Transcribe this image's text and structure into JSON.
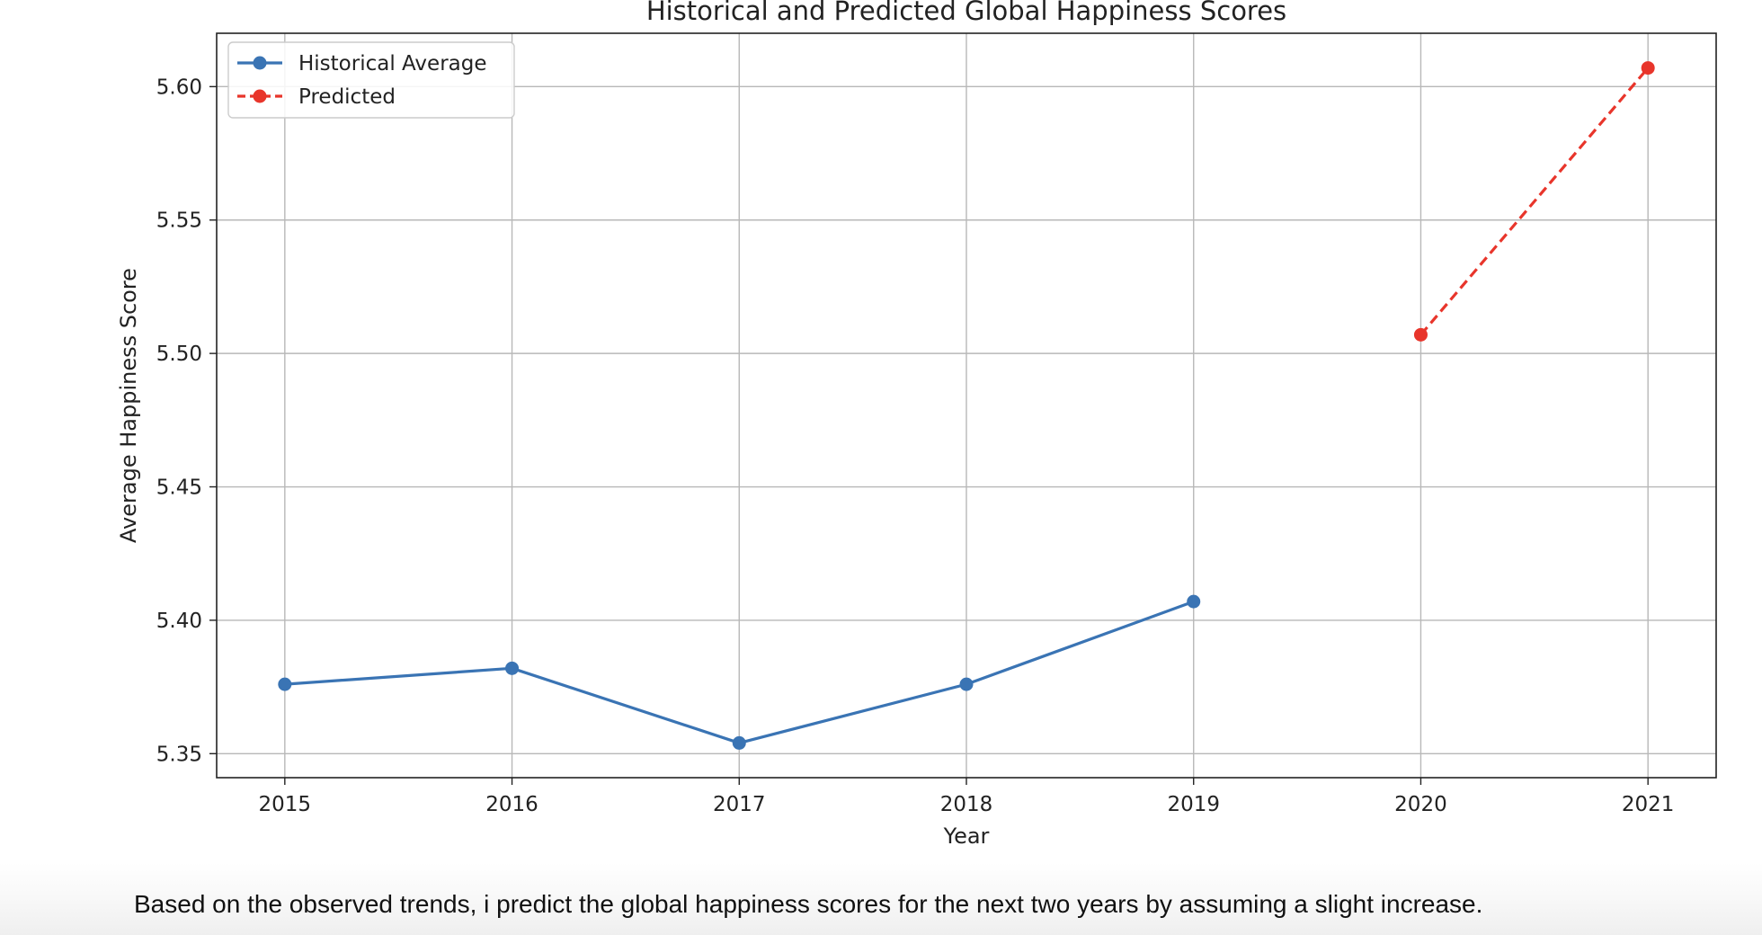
{
  "caption": "Based on the observed trends, i predict the global happiness scores for the next two years by assuming a slight increase.",
  "chart_data": {
    "type": "line",
    "title": "Historical and Predicted Global Happiness Scores",
    "xlabel": "Year",
    "ylabel": "Average Happiness Score",
    "xlim": [
      2014.7,
      2021.3
    ],
    "ylim": [
      5.341,
      5.62
    ],
    "x_ticks": [
      2015,
      2016,
      2017,
      2018,
      2019,
      2020,
      2021
    ],
    "x_tick_labels": [
      "2015",
      "2016",
      "2017",
      "2018",
      "2019",
      "2020",
      "2021"
    ],
    "y_ticks": [
      5.35,
      5.4,
      5.45,
      5.5,
      5.55,
      5.6
    ],
    "y_tick_labels": [
      "5.35",
      "5.40",
      "5.45",
      "5.50",
      "5.55",
      "5.60"
    ],
    "grid": true,
    "legend_position": "top-left",
    "series": [
      {
        "name": "Historical Average",
        "color": "#3a74b4",
        "line_style": "solid",
        "marker": "circle",
        "x": [
          2015,
          2016,
          2017,
          2018,
          2019
        ],
        "y": [
          5.376,
          5.382,
          5.354,
          5.376,
          5.407
        ]
      },
      {
        "name": "Predicted",
        "color": "#e8352b",
        "line_style": "dashed",
        "marker": "circle",
        "x": [
          2020,
          2021
        ],
        "y": [
          5.507,
          5.607
        ]
      }
    ]
  }
}
